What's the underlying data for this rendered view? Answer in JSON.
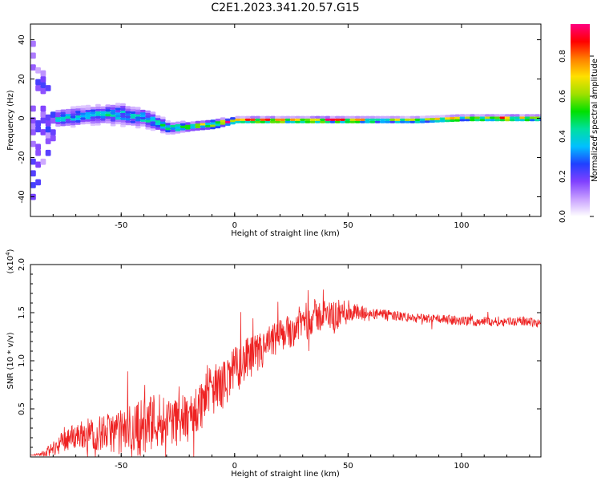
{
  "title": "C2E1.2023.341.20.57.G15",
  "chart_data": [
    {
      "type": "heatmap",
      "xlabel": "Height of straight line (km)",
      "ylabel": "Frequency (Hz)",
      "xlim": [
        -90,
        135
      ],
      "ylim": [
        -50,
        48
      ],
      "xticks": [
        -50,
        0,
        50,
        100
      ],
      "yticks": [
        -40,
        -20,
        0,
        20,
        40
      ],
      "grid": false,
      "colorbar": {
        "label": "Normalized spectral amplitude",
        "range": [
          0,
          0.96
        ],
        "ticks": [
          "0.0",
          "0.2",
          "0.4",
          "0.6",
          "0.8"
        ],
        "colors": [
          "#ffffff",
          "#c8a0ff",
          "#8040ff",
          "#2040ff",
          "#00c0ff",
          "#00e0a0",
          "#00e000",
          "#a0e000",
          "#ffe000",
          "#ff8000",
          "#ff0000",
          "#ff0080"
        ]
      },
      "ridge": {
        "x": [
          -90,
          -80,
          -70,
          -60,
          -50,
          -40,
          -30,
          -20,
          -10,
          0,
          20,
          40,
          60,
          80,
          100,
          120,
          135
        ],
        "center_hz": [
          0,
          0,
          1,
          2,
          2,
          0,
          -5,
          -4,
          -3,
          -1,
          -1,
          -1,
          -1,
          -1,
          0,
          0,
          0
        ],
        "half_width_hz": [
          40,
          6,
          6,
          6,
          7,
          6,
          4,
          3,
          3,
          2,
          2,
          2,
          2,
          2,
          2,
          2,
          2
        ],
        "peak_amplitude": [
          0.15,
          0.35,
          0.4,
          0.4,
          0.42,
          0.42,
          0.5,
          0.55,
          0.8,
          0.9,
          0.85,
          0.9,
          0.7,
          0.65,
          0.8,
          0.9,
          0.75
        ]
      }
    },
    {
      "type": "line",
      "xlabel": "Height of straight line (km)",
      "ylabel": "SNR (10 * v/v)",
      "y_multiplier": "(x10",
      "y_multiplier_exp": "4",
      "y_multiplier_close": ")",
      "xlim": [
        -90,
        135
      ],
      "ylim": [
        0,
        2.0
      ],
      "xticks": [
        -50,
        0,
        50,
        100
      ],
      "yticks": [
        "0.5",
        "1.0",
        "1.5",
        "2.0"
      ],
      "grid": false,
      "color": "#ee2222",
      "series": [
        {
          "x": [
            -90,
            -85,
            -80,
            -75,
            -70,
            -65,
            -60,
            -55,
            -50,
            -45,
            -40,
            -35,
            -30,
            -25,
            -20,
            -15,
            -10,
            -5,
            0,
            5,
            10,
            15,
            20,
            25,
            30,
            35,
            40,
            45,
            50,
            55,
            60,
            70,
            80,
            90,
            100,
            110,
            120,
            130,
            135
          ],
          "y": [
            0.02,
            0.03,
            0.1,
            0.2,
            0.25,
            0.28,
            0.28,
            0.3,
            0.3,
            0.35,
            0.38,
            0.45,
            0.45,
            0.42,
            0.45,
            0.6,
            0.75,
            0.8,
            0.95,
            1.05,
            1.1,
            1.2,
            1.3,
            1.35,
            1.45,
            1.5,
            1.5,
            1.5,
            1.55,
            1.5,
            1.5,
            1.48,
            1.45,
            1.45,
            1.42,
            1.42,
            1.42,
            1.42,
            1.4
          ],
          "noise": [
            0.0,
            0.02,
            0.08,
            0.12,
            0.14,
            0.16,
            0.18,
            0.2,
            0.24,
            0.28,
            0.32,
            0.3,
            0.28,
            0.26,
            0.28,
            0.28,
            0.26,
            0.25,
            0.25,
            0.23,
            0.22,
            0.2,
            0.18,
            0.18,
            0.18,
            0.18,
            0.16,
            0.16,
            0.14,
            0.1,
            0.06,
            0.05,
            0.05,
            0.05,
            0.05,
            0.05,
            0.05,
            0.05,
            0.05
          ]
        }
      ]
    }
  ]
}
